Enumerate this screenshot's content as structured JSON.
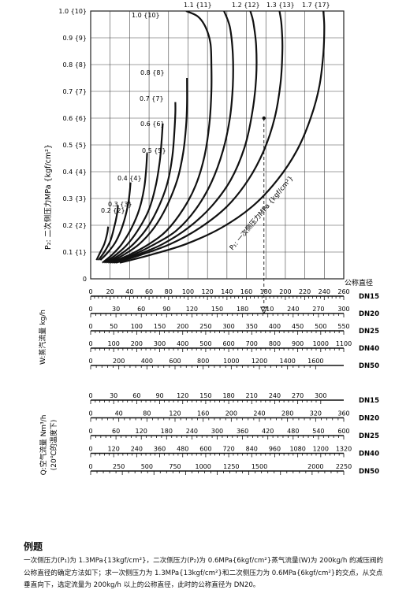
{
  "chart_data": {
    "type": "line",
    "y_axis": {
      "label": "P₂: 二次侧压力MPa {kgf/cm²}",
      "range": [
        0,
        1.0
      ],
      "ticks": [
        "0",
        "0.1 {1}",
        "0.2 {2}",
        "0.3 {3}",
        "0.4 {4}",
        "0.5 {5}",
        "0.6 {6}",
        "0.7 {7}",
        "0.8 {8}",
        "0.9 {9}",
        "1.0 {10}"
      ]
    },
    "x_axis": {
      "label": "公称直径",
      "range": [
        0,
        260
      ],
      "unit": "W:蒸汽流量 kg/h"
    },
    "p1_label": "P₁: 一次侧压力MPa {kgf/cm²}",
    "curve_labels": [
      "0.2 {2}",
      "0.3 {3}",
      "0.4 {4}",
      "0.5 {5}",
      "0.6 {6}",
      "0.7 {7}",
      "0.8 {8}",
      "1.0 {10}"
    ],
    "top_labels": [
      "1.1 {11}",
      "1.2 {12}",
      "1.3 {13}",
      "1.7 {17}"
    ],
    "series": [
      {
        "name": "0.2 {2}",
        "points": [
          [
            6,
            0.07
          ],
          [
            10,
            0.1
          ],
          [
            14,
            0.13
          ],
          [
            17,
            0.17
          ],
          [
            18,
            0.195
          ]
        ]
      },
      {
        "name": "0.3 {3}",
        "points": [
          [
            8,
            0.07
          ],
          [
            14,
            0.1
          ],
          [
            20,
            0.14
          ],
          [
            24,
            0.19
          ],
          [
            27,
            0.24
          ],
          [
            28,
            0.275
          ]
        ]
      },
      {
        "name": "0.4 {4}",
        "points": [
          [
            10,
            0.07
          ],
          [
            18,
            0.1
          ],
          [
            26,
            0.14
          ],
          [
            33,
            0.2
          ],
          [
            38,
            0.27
          ],
          [
            40,
            0.32
          ],
          [
            41,
            0.36
          ]
        ]
      },
      {
        "name": "0.5 {5}",
        "points": [
          [
            12,
            0.06
          ],
          [
            22,
            0.09
          ],
          [
            32,
            0.13
          ],
          [
            42,
            0.19
          ],
          [
            50,
            0.26
          ],
          [
            55,
            0.34
          ],
          [
            57,
            0.41
          ],
          [
            58,
            0.47
          ]
        ]
      },
      {
        "name": "0.6 {6}",
        "points": [
          [
            14,
            0.06
          ],
          [
            26,
            0.09
          ],
          [
            38,
            0.13
          ],
          [
            50,
            0.19
          ],
          [
            60,
            0.26
          ],
          [
            67,
            0.35
          ],
          [
            71,
            0.44
          ],
          [
            73,
            0.52
          ],
          [
            74,
            0.58
          ]
        ]
      },
      {
        "name": "0.7 {7}",
        "points": [
          [
            16,
            0.06
          ],
          [
            30,
            0.09
          ],
          [
            44,
            0.13
          ],
          [
            58,
            0.19
          ],
          [
            70,
            0.27
          ],
          [
            79,
            0.36
          ],
          [
            84,
            0.46
          ],
          [
            86,
            0.55
          ],
          [
            87,
            0.62
          ],
          [
            87,
            0.66
          ]
        ]
      },
      {
        "name": "0.8 {8}",
        "points": [
          [
            18,
            0.06
          ],
          [
            34,
            0.09
          ],
          [
            50,
            0.13
          ],
          [
            65,
            0.19
          ],
          [
            78,
            0.27
          ],
          [
            89,
            0.37
          ],
          [
            95,
            0.47
          ],
          [
            98,
            0.57
          ],
          [
            99,
            0.65
          ],
          [
            99,
            0.75
          ]
        ]
      },
      {
        "name": "1.0 {10}",
        "points": [
          [
            20,
            0.06
          ],
          [
            40,
            0.09
          ],
          [
            60,
            0.13
          ],
          [
            78,
            0.18
          ],
          [
            95,
            0.26
          ],
          [
            108,
            0.35
          ],
          [
            117,
            0.46
          ],
          [
            122,
            0.58
          ],
          [
            124,
            0.7
          ],
          [
            124,
            0.8
          ],
          [
            123,
            0.88
          ],
          [
            118,
            0.94
          ],
          [
            110,
            0.98
          ],
          [
            98,
            1.0
          ]
        ]
      },
      {
        "name": "1.1 {11}",
        "points": [
          [
            22,
            0.06
          ],
          [
            44,
            0.09
          ],
          [
            66,
            0.13
          ],
          [
            88,
            0.18
          ],
          [
            108,
            0.26
          ],
          [
            124,
            0.36
          ],
          [
            136,
            0.48
          ],
          [
            143,
            0.6
          ],
          [
            146,
            0.72
          ],
          [
            146,
            0.84
          ],
          [
            143,
            0.94
          ],
          [
            137,
            1.0
          ]
        ]
      },
      {
        "name": "1.2 {12}",
        "points": [
          [
            24,
            0.06
          ],
          [
            48,
            0.09
          ],
          [
            74,
            0.13
          ],
          [
            100,
            0.19
          ],
          [
            124,
            0.27
          ],
          [
            144,
            0.37
          ],
          [
            158,
            0.49
          ],
          [
            166,
            0.62
          ],
          [
            170,
            0.75
          ],
          [
            170,
            0.87
          ],
          [
            167,
            0.96
          ],
          [
            164,
            1.0
          ]
        ]
      },
      {
        "name": "1.3 {13}",
        "points": [
          [
            26,
            0.06
          ],
          [
            52,
            0.09
          ],
          [
            82,
            0.13
          ],
          [
            112,
            0.19
          ],
          [
            140,
            0.27
          ],
          [
            162,
            0.37
          ],
          [
            178,
            0.48
          ],
          [
            189,
            0.6
          ],
          [
            195,
            0.73
          ],
          [
            197,
            0.86
          ],
          [
            196,
            0.95
          ],
          [
            194,
            1.0
          ]
        ]
      },
      {
        "name": "1.7 {17}",
        "points": [
          [
            30,
            0.06
          ],
          [
            62,
            0.09
          ],
          [
            98,
            0.13
          ],
          [
            134,
            0.19
          ],
          [
            166,
            0.27
          ],
          [
            192,
            0.37
          ],
          [
            212,
            0.48
          ],
          [
            226,
            0.6
          ],
          [
            235,
            0.72
          ],
          [
            239,
            0.84
          ],
          [
            240,
            0.94
          ],
          [
            239,
            1.0
          ]
        ]
      }
    ],
    "example_point": {
      "x": 178,
      "y": 0.6
    },
    "steam_scales": {
      "title": "W:蒸汽流量 kg/h",
      "rows": [
        {
          "name": "DN15",
          "min": 0,
          "max": 260,
          "ticks": [
            "0",
            "20",
            "40",
            "60",
            "80",
            "100",
            "120",
            "140",
            "160",
            "180",
            "200",
            "220",
            "240",
            "260"
          ]
        },
        {
          "name": "DN20",
          "min": 0,
          "max": 300,
          "ticks": [
            "0",
            "30",
            "60",
            "90",
            "120",
            "150",
            "180",
            "210",
            "240",
            "270",
            "300"
          ]
        },
        {
          "name": "DN25",
          "min": 0,
          "max": 550,
          "ticks": [
            "0",
            "50",
            "100",
            "150",
            "200",
            "250",
            "300",
            "350",
            "400",
            "450",
            "500",
            "550"
          ]
        },
        {
          "name": "DN40",
          "min": 0,
          "max": 1100,
          "ticks": [
            "0",
            "100",
            "200",
            "300",
            "400",
            "500",
            "600",
            "700",
            "800",
            "900",
            "1000",
            "1100"
          ]
        },
        {
          "name": "DN50",
          "min": 0,
          "max": 1800,
          "ticks": [
            "0",
            "200",
            "400",
            "600",
            "800",
            "1000",
            "1200",
            "1400",
            "1600"
          ]
        }
      ]
    },
    "air_scales": {
      "title": "Q:空气流量 Nm³/h",
      "subtitle": "(20℃的温度下)",
      "rows": [
        {
          "name": "DN15",
          "min": 0,
          "max": 330,
          "ticks": [
            "0",
            "30",
            "60",
            "90",
            "120",
            "150",
            "180",
            "210",
            "240",
            "270",
            "300"
          ]
        },
        {
          "name": "DN20",
          "min": 0,
          "max": 360,
          "ticks": [
            "0",
            "40",
            "80",
            "120",
            "160",
            "200",
            "240",
            "280",
            "320",
            "360"
          ]
        },
        {
          "name": "DN25",
          "min": 0,
          "max": 600,
          "ticks": [
            "0",
            "60",
            "120",
            "180",
            "240",
            "300",
            "360",
            "420",
            "480",
            "540",
            "600"
          ]
        },
        {
          "name": "DN40",
          "min": 0,
          "max": 1320,
          "ticks": [
            "0",
            "120",
            "240",
            "360",
            "480",
            "600",
            "720",
            "840",
            "960",
            "1080",
            "1200",
            "1320"
          ]
        },
        {
          "name": "DN50",
          "min": 0,
          "max": 2250,
          "ticks": [
            "0",
            "250",
            "500",
            "750",
            "1000",
            "1250",
            "1500",
            "2000",
            "2250"
          ]
        }
      ]
    }
  },
  "example": {
    "title": "例题",
    "body": "一次侧压力(P₁)为 1.3MPa{13kgf/cm²}，二次侧压力(P₂)为 0.6MPa{6kgf/cm²}蒸气流量(W)为 200kg/h 的减压阀的公称直径的确定方法如下；求一次侧压力为 1.3MPa{13kgf/cm²}和二次侧压力为 0.6MPa{6kgf/cm²}的交点，从交点垂直向下，选定流量为 200kg/h 以上的公称直径，此时的公称直径为 DN20。"
  }
}
